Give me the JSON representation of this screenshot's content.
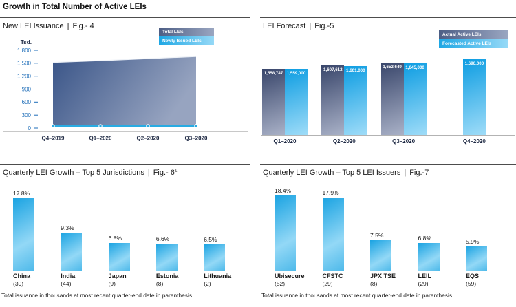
{
  "page_title": "Growth in Total Number of Active LEIs",
  "separator": "|",
  "footnote": "Total issuance in thousands at most recent quarter-end date in parenthesis",
  "colors": {
    "accent_light_blue": "#29abe2",
    "accent_dark_blue": "#3b568a",
    "axis_label_blue": "#1e6db8",
    "axis_line_gray": "#a6a6a6",
    "text_dark": "#1a1a1a"
  },
  "chart_data": [
    {
      "id": "fig4",
      "type": "area",
      "title": "New LEI Issuance",
      "fig_label": "Fig.- 4",
      "y_axis_unit": "Tsd.",
      "x": [
        "Q4–2019",
        "Q1–2020",
        "Q2–2020",
        "Q3–2020"
      ],
      "series": [
        {
          "name": "Total LEIs",
          "style": "dark-area",
          "values": [
            1520,
            1559,
            1608,
            1653
          ]
        },
        {
          "name": "Newly Issued LEIs",
          "style": "light-line",
          "values": [
            46,
            47,
            48,
            49
          ]
        }
      ],
      "ylim": [
        0,
        1800
      ],
      "yticks": [
        "0",
        "300",
        "600",
        "900",
        "1,200",
        "1,500",
        "1,800"
      ],
      "legend_position": "top-right",
      "grid": false
    },
    {
      "id": "fig5",
      "type": "bar",
      "title": "LEI Forecast",
      "fig_label": "Fig.-5",
      "categories": [
        "Q1–2020",
        "Q2–2020",
        "Q3–2020",
        "Q4–2020"
      ],
      "series": [
        {
          "name": "Actual Active LEIs",
          "style": "dark",
          "values": [
            1558747,
            1607612,
            1652649,
            null
          ]
        },
        {
          "name": "Forecasted Active LEIs",
          "style": "light",
          "values": [
            1559000,
            1601000,
            1645000,
            1696000
          ]
        }
      ],
      "data_labels": true,
      "legend_position": "top-right",
      "baseline_truncated": true
    },
    {
      "id": "fig6",
      "type": "bar",
      "title": "Quarterly LEI Growth – Top 5 Jurisdictions",
      "fig_label": "Fig.- 6",
      "fig_superscript": "1",
      "categories": [
        "China",
        "India",
        "Japan",
        "Estonia",
        "Lithuania"
      ],
      "values": [
        17.8,
        9.3,
        6.8,
        6.6,
        6.5
      ],
      "value_suffix": "%",
      "counts": [
        "(30)",
        "(44)",
        "(9)",
        "(8)",
        "(2)"
      ]
    },
    {
      "id": "fig7",
      "type": "bar",
      "title": "Quarterly LEI Growth – Top 5 LEI Issuers",
      "fig_label": "Fig.-7",
      "categories": [
        "Ubisecure",
        "CFSTC",
        "JPX TSE",
        "LEIL",
        "EQS"
      ],
      "values": [
        18.4,
        17.9,
        7.5,
        6.8,
        5.9
      ],
      "value_suffix": "%",
      "counts": [
        "(52)",
        "(29)",
        "(8)",
        "(29)",
        "(59)"
      ]
    }
  ]
}
